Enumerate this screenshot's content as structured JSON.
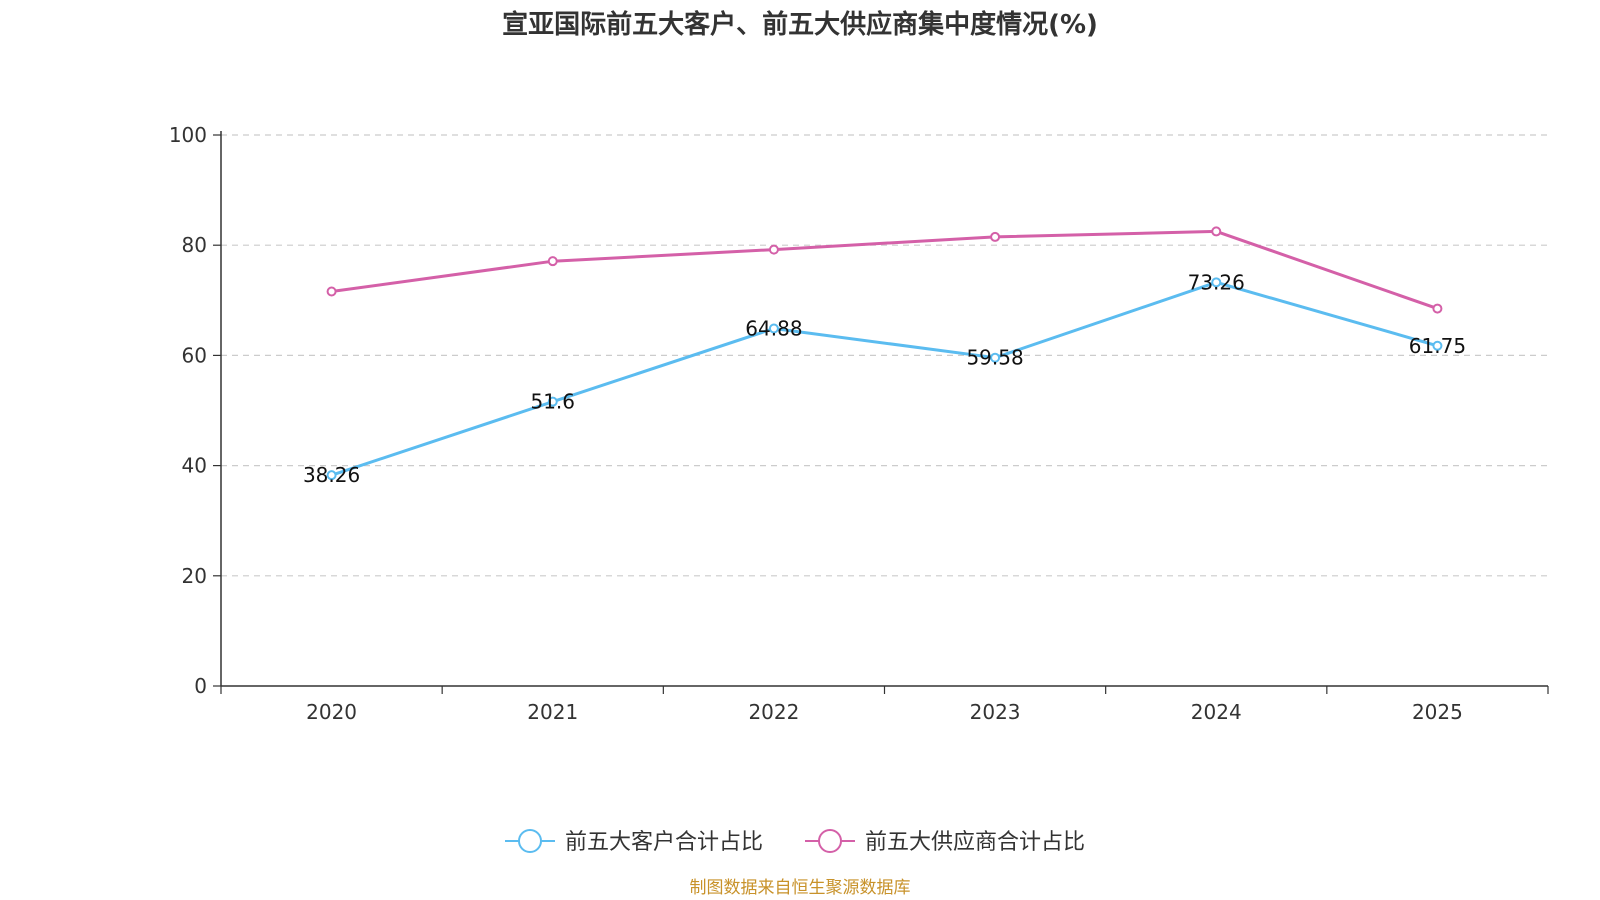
{
  "chart_data": {
    "type": "line",
    "title": "宣亚国际前五大客户、前五大供应商集中度情况(%)",
    "categories": [
      "2020",
      "2021",
      "2022",
      "2023",
      "2024",
      "2025"
    ],
    "ylim": [
      0,
      100
    ],
    "yticks": [
      0,
      20,
      40,
      60,
      80,
      100
    ],
    "grid": true,
    "legend_position": "bottom-center",
    "series": [
      {
        "name": "前五大客户合计占比",
        "color": "#5bbcf0",
        "values": [
          38.26,
          51.6,
          64.88,
          59.58,
          73.26,
          61.75
        ],
        "labels": [
          "38.26",
          "51.6",
          "64.88",
          "59.58",
          "73.26",
          "61.75"
        ]
      },
      {
        "name": "前五大供应商合计占比",
        "color": "#d460a8",
        "values": [
          71.6,
          77.1,
          79.2,
          81.5,
          82.5,
          68.5
        ]
      }
    ],
    "source": "制图数据来自恒生聚源数据库"
  }
}
